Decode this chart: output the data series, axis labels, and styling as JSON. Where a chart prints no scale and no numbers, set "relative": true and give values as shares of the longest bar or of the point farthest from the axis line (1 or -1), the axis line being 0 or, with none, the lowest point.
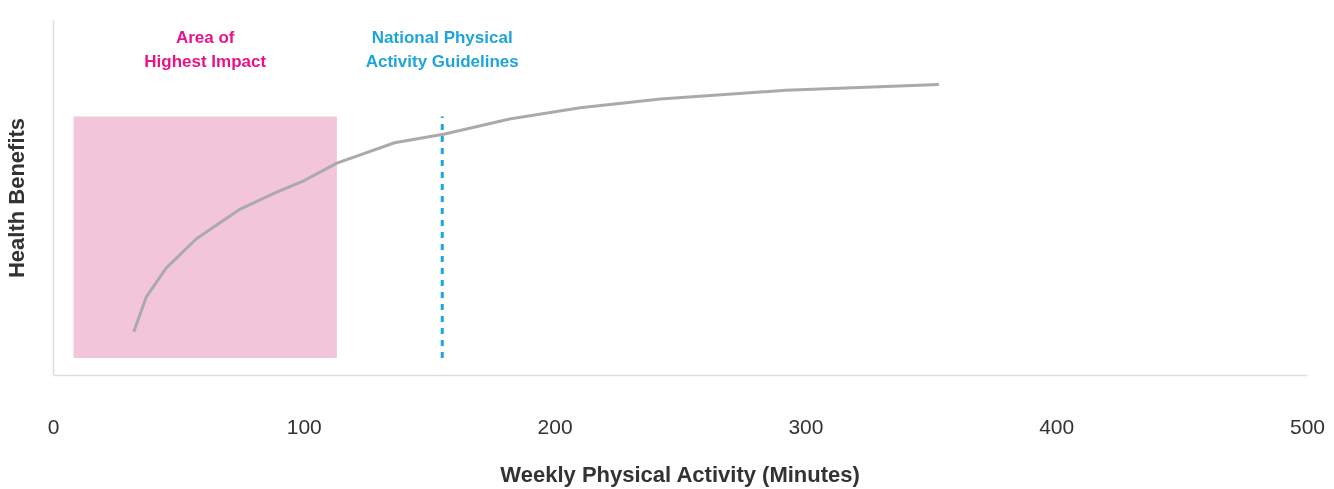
{
  "chart_data": {
    "type": "line",
    "relative": true,
    "xlabel": "Weekly Physical Activity (Minutes)",
    "ylabel": "Health Benefits",
    "xlim": [
      0,
      500
    ],
    "xticks": [
      0,
      100,
      200,
      300,
      400,
      500
    ],
    "tick_labels": "x",
    "grid": false,
    "marker": "none",
    "line_style": "solid",
    "series": [
      {
        "color": "#aaaaaa",
        "x": [
          32,
          37,
          45,
          57,
          74,
          89,
          100,
          113,
          136,
          156,
          181,
          210,
          242,
          292,
          353
        ],
        "values": [
          0.15,
          0.27,
          0.37,
          0.47,
          0.57,
          0.63,
          0.67,
          0.73,
          0.8,
          0.83,
          0.88,
          0.92,
          0.95,
          0.98,
          1.0
        ]
      }
    ],
    "bands": [
      {
        "axis": "x",
        "from": 8,
        "to": 113,
        "label": "Area of\nHighest Impact",
        "color": "#f2c5da"
      }
    ],
    "ref_lines": [
      {
        "axis": "x",
        "value": 155,
        "label": "National Physical\nActivity Guidelines",
        "color": "#1ea5dc",
        "line_style": "dashed"
      }
    ]
  }
}
